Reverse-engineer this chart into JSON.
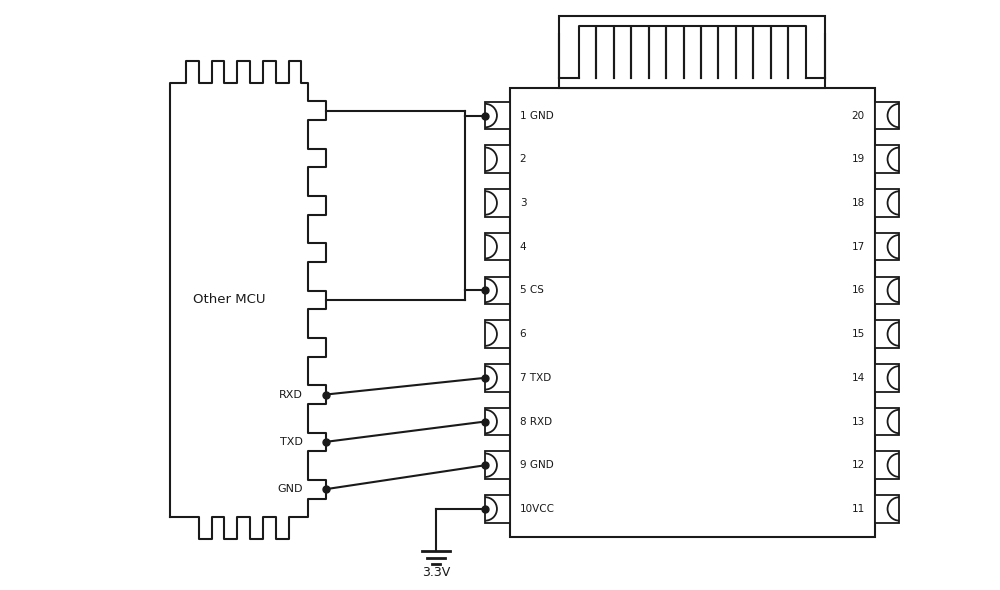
{
  "bg_color": "#ffffff",
  "line_color": "#1a1a1a",
  "text_color": "#1a1a1a",
  "pin_labels_left": [
    "1 GND",
    "2",
    "3",
    "4",
    "5 CS",
    "6",
    "7 TXD",
    "8 RXD",
    "9 GND",
    "10VCC"
  ],
  "pin_labels_right": [
    "20",
    "19",
    "18",
    "17",
    "16",
    "15",
    "14",
    "13",
    "12",
    "11"
  ],
  "mcu_label": "Other MCU",
  "rxd_label": "RXD",
  "txd_label": "TXD",
  "gnd_label": "GND",
  "vcc_label": "3.3V",
  "n_pins_module": 10,
  "n_teeth_antenna": 13,
  "figsize": [
    10.0,
    5.9
  ],
  "dpi": 100
}
